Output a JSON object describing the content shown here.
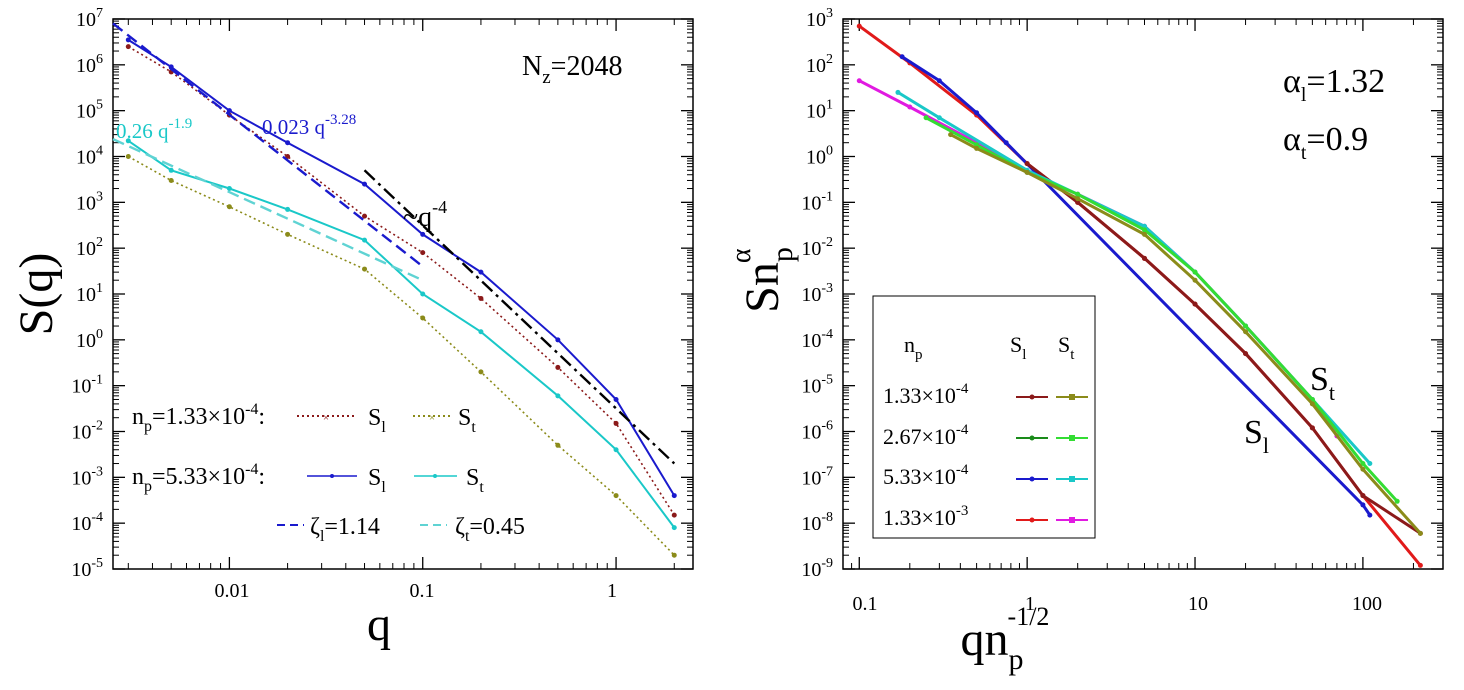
{
  "chart_data": [
    {
      "type": "line",
      "panel": "left",
      "xscale": "log",
      "yscale": "log",
      "xlim": [
        0.0025,
        2.5
      ],
      "ylim": [
        1e-05,
        10000000
      ],
      "xlabel": "q",
      "ylabel": "S(q)",
      "x_tick_labels": [
        "0.01",
        "0.1",
        "1"
      ],
      "x_ticks": [
        0.01,
        0.1,
        1
      ],
      "y_ticks_exp": [
        -5,
        -4,
        -3,
        -2,
        -1,
        0,
        1,
        2,
        3,
        4,
        5,
        6,
        7
      ],
      "y_tick_base": "10",
      "annotation_nz": {
        "main": "N",
        "sub": "z",
        "rest": "=2048"
      },
      "annotation_q4": {
        "main": "~q",
        "sup": "-4"
      },
      "fit_t_label": {
        "main": "0.26 q",
        "sup": "-1.9"
      },
      "fit_l_label": {
        "main": "0.023 q",
        "sup": "-3.28"
      },
      "legend": {
        "row1": {
          "np_main": "n",
          "np_sub": "p",
          "np_rest": "=1.33×10",
          "np_exp": "-4",
          "colon": ":",
          "sl_main": "S",
          "sl_sub": "l",
          "st_main": "S",
          "st_sub": "t"
        },
        "row2": {
          "np_main": "n",
          "np_sub": "p",
          "np_rest": "=5.33×10",
          "np_exp": "-4",
          "colon": ":",
          "sl_main": "S",
          "sl_sub": "l",
          "st_main": "S",
          "st_sub": "t"
        },
        "row3": {
          "zl_main": "ζ",
          "zl_sub": "l",
          "zl_rest": "=1.14",
          "zt_main": "ζ",
          "zt_sub": "t",
          "zt_rest": "=0.45"
        }
      },
      "series": [
        {
          "name": "S_l n_p=1.33e-4",
          "color": "#8b1a1a",
          "style": "dotted-x",
          "x": [
            0.003,
            0.005,
            0.01,
            0.02,
            0.05,
            0.1,
            0.2,
            0.5,
            1,
            2
          ],
          "y": [
            2500000,
            700000,
            80000,
            10000,
            500,
            80,
            8,
            0.25,
            0.015,
            0.00015
          ]
        },
        {
          "name": "S_t n_p=1.33e-4",
          "color": "#8b8b1a",
          "style": "dotted-x",
          "x": [
            0.003,
            0.005,
            0.01,
            0.02,
            0.05,
            0.1,
            0.2,
            0.5,
            1,
            2
          ],
          "y": [
            10000,
            3000,
            800,
            200,
            35,
            3,
            0.2,
            0.005,
            0.0004,
            2e-05
          ]
        },
        {
          "name": "S_l n_p=5.33e-4",
          "color": "#1a1acd",
          "style": "solid",
          "x": [
            0.003,
            0.005,
            0.01,
            0.02,
            0.05,
            0.1,
            0.2,
            0.5,
            1,
            2
          ],
          "y": [
            3500000,
            900000,
            100000,
            20000,
            2500,
            200,
            30,
            1,
            0.05,
            0.0004
          ]
        },
        {
          "name": "S_t n_p=5.33e-4",
          "color": "#1ac8c8",
          "style": "solid",
          "x": [
            0.003,
            0.005,
            0.01,
            0.02,
            0.05,
            0.1,
            0.2,
            0.5,
            1,
            2
          ],
          "y": [
            22000,
            5000,
            2000,
            700,
            150,
            10,
            1.5,
            0.06,
            0.004,
            8e-05
          ]
        },
        {
          "name": "fit 0.023 q^-3.28",
          "color": "#1a1acd",
          "style": "dashed",
          "x": [
            0.0025,
            0.1
          ],
          "y": [
            8000000,
            40
          ]
        },
        {
          "name": "fit 0.26 q^-1.9",
          "color": "#5fd3d3",
          "style": "dashed",
          "x": [
            0.0025,
            0.1
          ],
          "y": [
            24000,
            20
          ]
        },
        {
          "name": "~q^-4 guide",
          "color": "#000000",
          "style": "dashdot",
          "x": [
            0.05,
            2
          ],
          "y": [
            5000,
            0.002
          ]
        }
      ]
    },
    {
      "type": "line",
      "panel": "right",
      "xscale": "log",
      "yscale": "log",
      "xlim": [
        0.08,
        300
      ],
      "ylim": [
        1e-09,
        1000
      ],
      "xlabel_main": "qn",
      "xlabel_sub": "p",
      "xlabel_sup": "-1/2",
      "ylabel_main": "Sn",
      "ylabel_sub": "p",
      "ylabel_sup": "α",
      "x_tick_labels": [
        "0.1",
        "1",
        "10",
        "100"
      ],
      "x_ticks": [
        0.1,
        1,
        10,
        100
      ],
      "y_ticks_exp": [
        -9,
        -8,
        -7,
        -6,
        -5,
        -4,
        -3,
        -2,
        -1,
        0,
        1,
        2,
        3
      ],
      "y_tick_base": "10",
      "alpha_l": {
        "main": "α",
        "sub": "l",
        "rest": "=1.32"
      },
      "alpha_t": {
        "main": "α",
        "sub": "t",
        "rest": "=0.9"
      },
      "curve_label_st": {
        "main": "S",
        "sub": "t"
      },
      "curve_label_sl": {
        "main": "S",
        "sub": "l"
      },
      "legend": {
        "head_np_main": "n",
        "head_np_sub": "p",
        "head_sl_main": "S",
        "head_sl_sub": "l",
        "head_st_main": "S",
        "head_st_sub": "t",
        "rows": [
          {
            "base": "1.33×10",
            "exp": "-4",
            "color_l": "#8b1a1a",
            "color_t": "#8b8b1a"
          },
          {
            "base": "2.67×10",
            "exp": "-4",
            "color_l": "#1a8b1a",
            "color_t": "#33dd33"
          },
          {
            "base": "5.33×10",
            "exp": "-4",
            "color_l": "#1a1acd",
            "color_t": "#1ac8c8"
          },
          {
            "base": "1.33×10",
            "exp": "-3",
            "color_l": "#e11a1a",
            "color_t": "#e11ae1"
          }
        ]
      },
      "series": [
        {
          "name": "S_l 1.33e-3",
          "color": "#e11a1a",
          "x": [
            0.1,
            0.2,
            0.5,
            1,
            2,
            5,
            10,
            20,
            50,
            100,
            220
          ],
          "y": [
            700,
            110,
            8,
            0.7,
            0.1,
            0.006,
            0.0006,
            5e-05,
            1.2e-06,
            4e-08,
            1.2e-09
          ]
        },
        {
          "name": "S_l 5.33e-4",
          "color": "#1a1acd",
          "x": [
            0.18,
            0.3,
            0.5,
            0.75,
            100,
            110
          ],
          "y": [
            150,
            45,
            9,
            2,
            2.5e-08,
            1.5e-08
          ]
        },
        {
          "name": "S_l 1.33e-4",
          "color": "#8b1a1a",
          "x": [
            1,
            2,
            5,
            10,
            20,
            50,
            100,
            220
          ],
          "y": [
            0.7,
            0.1,
            0.006,
            0.0006,
            5e-05,
            1.2e-06,
            4e-08,
            6e-09
          ]
        },
        {
          "name": "S_t 1.33e-3",
          "color": "#e11ae1",
          "x": [
            0.1,
            0.2,
            0.5,
            1,
            2,
            5,
            10,
            20,
            50,
            70
          ],
          "y": [
            45,
            12,
            2,
            0.45,
            0.15,
            0.03,
            0.003,
            0.0002,
            5e-06,
            8e-07
          ]
        },
        {
          "name": "S_t 5.33e-4",
          "color": "#1ac8c8",
          "x": [
            0.17,
            0.3,
            1,
            2,
            5,
            10,
            20,
            50,
            110
          ],
          "y": [
            25,
            7,
            0.5,
            0.15,
            0.03,
            0.003,
            0.0002,
            5e-06,
            2e-07
          ]
        },
        {
          "name": "S_t 2.67e-4",
          "color": "#33dd33",
          "x": [
            0.25,
            0.5,
            1,
            2,
            5,
            10,
            20,
            50,
            100,
            160
          ],
          "y": [
            7,
            1.8,
            0.45,
            0.15,
            0.025,
            0.003,
            0.0002,
            5e-06,
            2e-07,
            3e-08
          ]
        },
        {
          "name": "S_t 1.33e-4",
          "color": "#8b8b1a",
          "x": [
            0.35,
            0.5,
            1,
            2,
            5,
            10,
            20,
            50,
            100,
            220
          ],
          "y": [
            3,
            1.5,
            0.45,
            0.12,
            0.02,
            0.002,
            0.00015,
            4e-06,
            1.5e-07,
            6e-09
          ]
        }
      ]
    }
  ]
}
